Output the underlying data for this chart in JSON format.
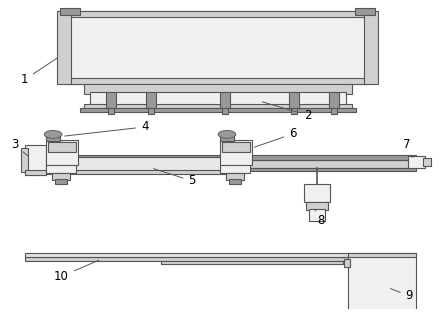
{
  "background_color": "#ffffff",
  "line_color": "#555555",
  "fill_light": "#f0f0f0",
  "fill_mid": "#d0d0d0",
  "fill_dark": "#999999",
  "fig_width": 4.44,
  "fig_height": 3.12,
  "dpi": 100
}
